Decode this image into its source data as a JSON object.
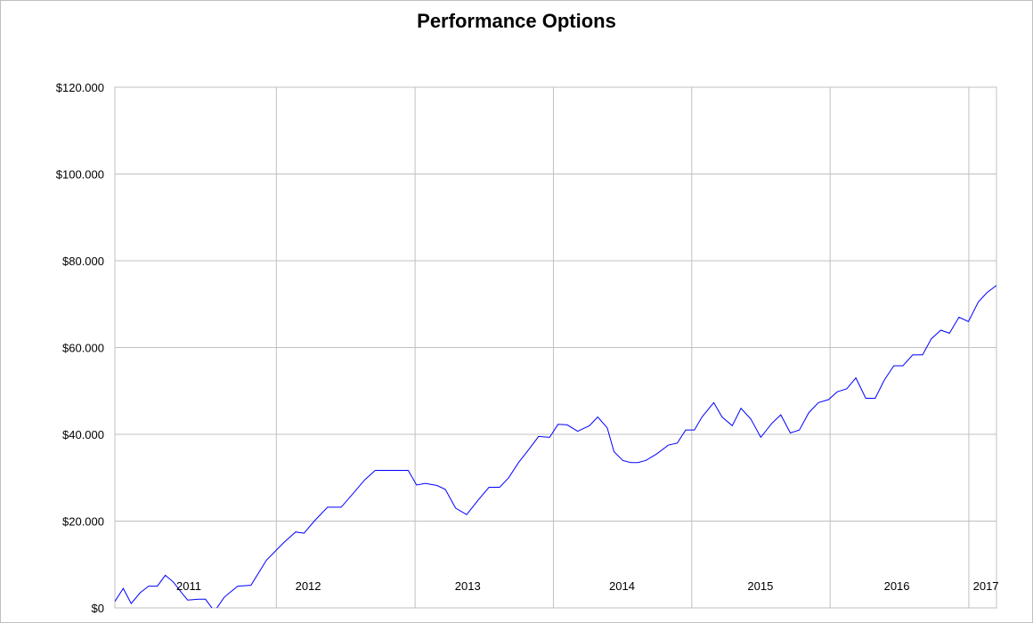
{
  "chart_data": {
    "type": "line",
    "title": "Performance Options",
    "xlabel": "",
    "ylabel": "",
    "ylim": [
      0,
      120000
    ],
    "y_ticks": [
      0,
      20000,
      40000,
      60000,
      80000,
      100000,
      120000
    ],
    "y_tick_labels": [
      "$0",
      "$20.000",
      "$40.000",
      "$60.000",
      "$80.000",
      "$100.000",
      "$120.000"
    ],
    "xlim": [
      "2010-11-01",
      "2017-03-15"
    ],
    "x_gridlines": [
      "2012-01-01",
      "2013-01-01",
      "2014-01-01",
      "2015-01-01",
      "2016-01-01",
      "2017-01-01"
    ],
    "year_labels": [
      {
        "text": "2011",
        "x": "2011-05-15"
      },
      {
        "text": "2012",
        "x": "2012-03-25"
      },
      {
        "text": "2013",
        "x": "2013-05-20"
      },
      {
        "text": "2014",
        "x": "2014-07-01"
      },
      {
        "text": "2015",
        "x": "2015-07-01"
      },
      {
        "text": "2016",
        "x": "2016-06-25"
      },
      {
        "text": "2017",
        "x": "2017-02-15"
      }
    ],
    "grid": true,
    "series": [
      {
        "name": "",
        "color": "#0000ff",
        "points": [
          [
            "2010-11-01",
            1500
          ],
          [
            "2010-11-23",
            4500
          ],
          [
            "2010-12-14",
            1000
          ],
          [
            "2011-01-07",
            3500
          ],
          [
            "2011-01-29",
            5000
          ],
          [
            "2011-02-21",
            5000
          ],
          [
            "2011-03-14",
            7500
          ],
          [
            "2011-04-04",
            6000
          ],
          [
            "2011-04-26",
            3500
          ],
          [
            "2011-05-12",
            1800
          ],
          [
            "2011-06-10",
            2000
          ],
          [
            "2011-06-28",
            2000
          ],
          [
            "2011-07-22",
            -800
          ],
          [
            "2011-08-17",
            2500
          ],
          [
            "2011-09-21",
            5000
          ],
          [
            "2011-10-26",
            5200
          ],
          [
            "2011-12-06",
            11000
          ],
          [
            "2012-01-20",
            15000
          ],
          [
            "2012-02-21",
            17500
          ],
          [
            "2012-03-14",
            17200
          ],
          [
            "2012-04-10",
            20000
          ],
          [
            "2012-05-15",
            23200
          ],
          [
            "2012-06-20",
            23200
          ],
          [
            "2012-07-23",
            26500
          ],
          [
            "2012-08-21",
            29500
          ],
          [
            "2012-09-18",
            31700
          ],
          [
            "2012-11-06",
            31700
          ],
          [
            "2012-12-14",
            31700
          ],
          [
            "2013-01-05",
            28300
          ],
          [
            "2013-01-28",
            28700
          ],
          [
            "2013-02-28",
            28200
          ],
          [
            "2013-03-22",
            27300
          ],
          [
            "2013-04-18",
            23000
          ],
          [
            "2013-05-17",
            21500
          ],
          [
            "2013-06-18",
            25000
          ],
          [
            "2013-07-15",
            27800
          ],
          [
            "2013-08-12",
            27800
          ],
          [
            "2013-09-05",
            30000
          ],
          [
            "2013-10-01",
            33500
          ],
          [
            "2013-10-28",
            36500
          ],
          [
            "2013-11-23",
            39500
          ],
          [
            "2013-12-22",
            39300
          ],
          [
            "2014-01-13",
            42300
          ],
          [
            "2014-02-06",
            42200
          ],
          [
            "2014-03-06",
            40700
          ],
          [
            "2014-04-06",
            42000
          ],
          [
            "2014-04-28",
            44000
          ],
          [
            "2014-05-23",
            41500
          ],
          [
            "2014-06-10",
            36000
          ],
          [
            "2014-07-03",
            34000
          ],
          [
            "2014-07-24",
            33500
          ],
          [
            "2014-08-12",
            33500
          ],
          [
            "2014-09-02",
            34000
          ],
          [
            "2014-10-01",
            35500
          ],
          [
            "2014-10-31",
            37500
          ],
          [
            "2014-11-24",
            38000
          ],
          [
            "2014-12-16",
            41000
          ],
          [
            "2015-01-08",
            41000
          ],
          [
            "2015-01-28",
            44000
          ],
          [
            "2015-02-28",
            47300
          ],
          [
            "2015-03-22",
            44000
          ],
          [
            "2015-04-18",
            42000
          ],
          [
            "2015-05-11",
            46000
          ],
          [
            "2015-06-06",
            43500
          ],
          [
            "2015-07-02",
            39300
          ],
          [
            "2015-07-31",
            42500
          ],
          [
            "2015-08-24",
            44500
          ],
          [
            "2015-09-18",
            40300
          ],
          [
            "2015-10-12",
            41000
          ],
          [
            "2015-11-06",
            45000
          ],
          [
            "2015-12-01",
            47300
          ],
          [
            "2015-12-28",
            48000
          ],
          [
            "2016-01-20",
            49800
          ],
          [
            "2016-02-14",
            50500
          ],
          [
            "2016-03-09",
            53000
          ],
          [
            "2016-04-04",
            48300
          ],
          [
            "2016-04-29",
            48300
          ],
          [
            "2016-05-23",
            52500
          ],
          [
            "2016-06-17",
            55800
          ],
          [
            "2016-07-11",
            55800
          ],
          [
            "2016-08-06",
            58300
          ],
          [
            "2016-09-01",
            58300
          ],
          [
            "2016-09-24",
            62000
          ],
          [
            "2016-10-19",
            64000
          ],
          [
            "2016-11-11",
            63300
          ],
          [
            "2016-12-06",
            67000
          ],
          [
            "2016-12-31",
            66000
          ],
          [
            "2017-01-26",
            70500
          ],
          [
            "2017-02-18",
            72700
          ],
          [
            "2017-03-15",
            74300
          ]
        ]
      }
    ]
  }
}
